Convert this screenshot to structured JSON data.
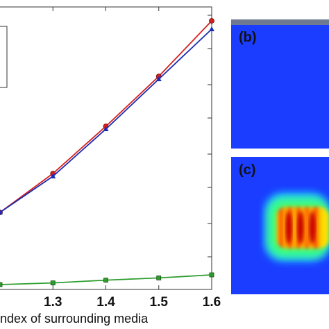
{
  "chart_data": {
    "type": "line",
    "xlabel": "ndex of surrounding media",
    "ylabel": "",
    "title": "",
    "xlim": [
      1.2,
      1.6
    ],
    "ylim": [
      0,
      1
    ],
    "x_tick_labels": [
      "1.3",
      "1.4",
      "1.5",
      "1.6"
    ],
    "x_ticks": [
      1.3,
      1.4,
      1.5,
      1.6
    ],
    "grid": false,
    "series": [
      {
        "color": "#d62020",
        "marker": "circle",
        "x": [
          1.2,
          1.3,
          1.4,
          1.5,
          1.6
        ],
        "y": [
          0.26,
          0.4,
          0.57,
          0.75,
          0.95
        ]
      },
      {
        "color": "#1c2bb0",
        "marker": "triangle",
        "x": [
          1.2,
          1.3,
          1.4,
          1.5,
          1.6
        ],
        "y": [
          0.26,
          0.39,
          0.56,
          0.74,
          0.92
        ]
      },
      {
        "color": "#2e9e2e",
        "marker": "square",
        "x": [
          1.2,
          1.3,
          1.4,
          1.5,
          1.6
        ],
        "y": [
          0.0,
          0.006,
          0.016,
          0.024,
          0.035
        ]
      }
    ]
  },
  "panels": {
    "b_label": "(b)",
    "c_label": "(c)",
    "b_background": "#1a3dff",
    "c_background": "#1a3dff"
  }
}
